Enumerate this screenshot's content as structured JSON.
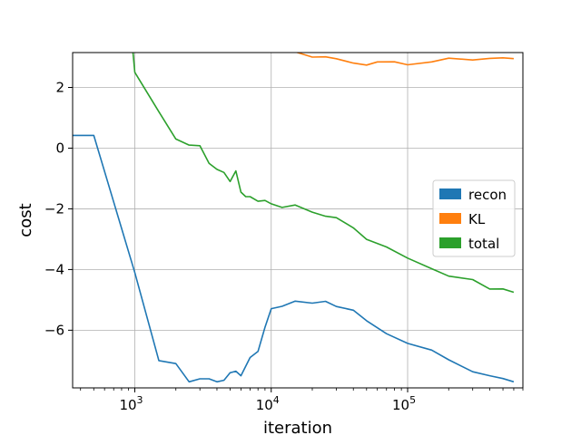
{
  "chart_data": {
    "type": "line",
    "title": "",
    "xlabel": "iteration",
    "ylabel": "cost",
    "x_scale": "log",
    "xlim": [
      350,
      700000
    ],
    "ylim": [
      -7.9,
      3.15
    ],
    "grid": true,
    "legend_position": "center-right",
    "x_ticks": [
      {
        "value": 1000,
        "base": "10",
        "exp": "3"
      },
      {
        "value": 10000,
        "base": "10",
        "exp": "4"
      },
      {
        "value": 100000,
        "base": "10",
        "exp": "5"
      }
    ],
    "y_ticks": [
      {
        "value": 2,
        "label": "2"
      },
      {
        "value": 0,
        "label": "0"
      },
      {
        "value": -2,
        "label": "−2"
      },
      {
        "value": -4,
        "label": "−4"
      },
      {
        "value": -6,
        "label": "−6"
      }
    ],
    "series": [
      {
        "name": "recon",
        "color": "#1f77b4",
        "x": [
          350,
          500,
          1000,
          1500,
          2000,
          2500,
          3000,
          3500,
          4000,
          4500,
          5000,
          5500,
          6000,
          7000,
          8000,
          9000,
          10000,
          12000,
          15000,
          20000,
          25000,
          30000,
          40000,
          50000,
          70000,
          100000,
          150000,
          200000,
          300000,
          400000,
          500000,
          600000
        ],
        "y": [
          0.42,
          0.42,
          -4.1,
          -7.0,
          -7.1,
          -7.7,
          -7.6,
          -7.6,
          -7.7,
          -7.65,
          -7.4,
          -7.35,
          -7.5,
          -6.9,
          -6.7,
          -5.9,
          -5.3,
          -5.15,
          -5.0,
          -5.1,
          -5.05,
          -5.15,
          -5.4,
          -5.7,
          -6.1,
          -6.4,
          -6.7,
          -7.0,
          -7.3,
          -7.5,
          -7.55,
          -7.7
        ],
        "noise": 0.08
      },
      {
        "name": "KL",
        "color": "#ff7f0e",
        "x": [
          15000,
          20000,
          25000,
          30000,
          40000,
          50000,
          60000,
          80000,
          100000,
          150000,
          200000,
          300000,
          400000,
          500000,
          600000
        ],
        "y": [
          3.15,
          3.05,
          3.0,
          2.95,
          2.85,
          2.8,
          2.78,
          2.78,
          2.8,
          2.85,
          2.9,
          2.95,
          2.97,
          2.97,
          2.95
        ],
        "noise": 0.07
      },
      {
        "name": "total",
        "color": "#2ca02c",
        "x": [
          970,
          1000,
          1500,
          2000,
          2500,
          3000,
          3500,
          4000,
          4500,
          5000,
          5500,
          6000,
          6500,
          7000,
          8000,
          9000,
          10000,
          12000,
          15000,
          20000,
          25000,
          30000,
          40000,
          50000,
          70000,
          100000,
          150000,
          200000,
          300000,
          400000,
          500000,
          600000
        ],
        "y": [
          3.15,
          2.5,
          1.2,
          0.3,
          0.1,
          0.08,
          -0.5,
          -0.7,
          -0.8,
          -1.1,
          -0.75,
          -1.45,
          -1.6,
          -1.6,
          -1.75,
          -1.75,
          -1.8,
          -1.9,
          -1.95,
          -2.1,
          -2.2,
          -2.3,
          -2.6,
          -2.95,
          -3.3,
          -3.6,
          -3.95,
          -4.15,
          -4.4,
          -4.6,
          -4.7,
          -4.75
        ],
        "noise": 0.08
      }
    ]
  }
}
